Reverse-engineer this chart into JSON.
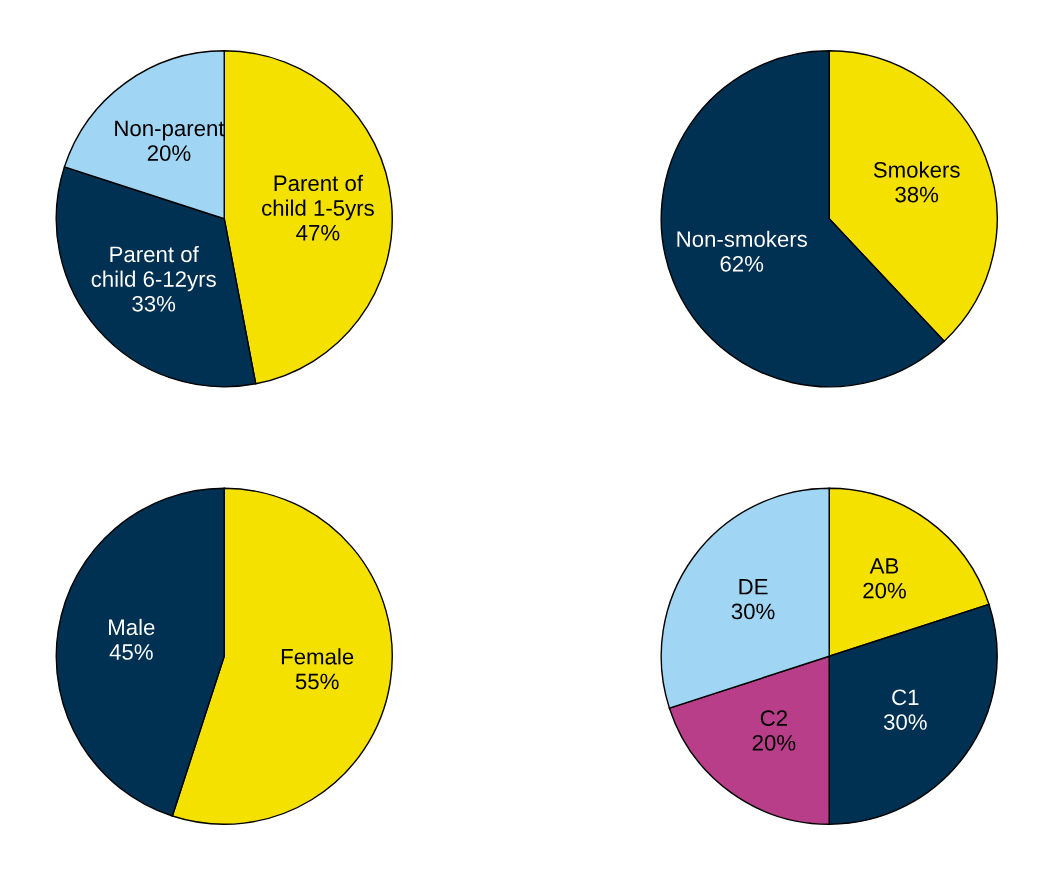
{
  "chart_data": [
    {
      "type": "pie",
      "categories": [
        "Parent of\nchild 1-5yrs",
        "Parent of\nchild 6-12yrs",
        "Non-parent"
      ],
      "values": [
        47,
        33,
        20
      ],
      "value_labels": [
        "47%",
        "33%",
        "20%"
      ],
      "colors": [
        "#f5e100",
        "#003152",
        "#a0d5f3"
      ]
    },
    {
      "type": "pie",
      "categories": [
        "Smokers",
        "Non-smokers"
      ],
      "values": [
        38,
        62
      ],
      "value_labels": [
        "38%",
        "62%"
      ],
      "colors": [
        "#f5e100",
        "#003152"
      ]
    },
    {
      "type": "pie",
      "categories": [
        "Female",
        "Male"
      ],
      "values": [
        55,
        45
      ],
      "value_labels": [
        "55%",
        "45%"
      ],
      "colors": [
        "#f5e100",
        "#003152"
      ]
    },
    {
      "type": "pie",
      "categories": [
        "AB",
        "C1",
        "C2",
        "DE"
      ],
      "values": [
        20,
        30,
        20,
        30
      ],
      "value_labels": [
        "20%",
        "30%",
        "20%",
        "30%"
      ],
      "colors": [
        "#f5e100",
        "#003152",
        "#b83e8a",
        "#a0d5f3"
      ]
    }
  ]
}
